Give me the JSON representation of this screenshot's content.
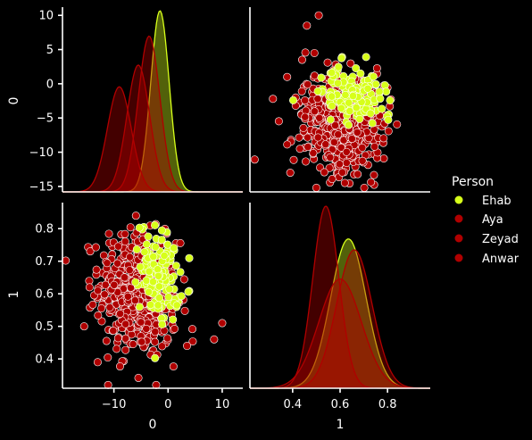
{
  "chart_data": {
    "type": "pairplot",
    "variables": [
      "0",
      "1"
    ],
    "background": "#000000",
    "axis_color": "#ffffff",
    "legend": {
      "title": "Person",
      "placement": "right",
      "entries": [
        {
          "name": "Ehab",
          "color": "#d7ff1a"
        },
        {
          "name": "Aya",
          "color": "#b00000"
        },
        {
          "name": "Zeyad",
          "color": "#b00000"
        },
        {
          "name": "Anwar",
          "color": "#b00000"
        }
      ]
    },
    "x_range_var0": [
      -19.5,
      13.8
    ],
    "y_range_var0": [
      -15.8,
      11.2
    ],
    "x_range_var1": [
      0.22,
      0.98
    ],
    "y_range_var1": [
      0.31,
      0.88
    ],
    "xticks_var0": [
      -10,
      0,
      10
    ],
    "yticks_var0": [
      -15,
      -10,
      -5,
      0,
      5,
      10
    ],
    "xticks_var1": [
      0.4,
      0.6,
      0.8
    ],
    "yticks_var1": [
      0.4,
      0.5,
      0.6,
      0.7,
      0.8
    ],
    "xlabels": [
      "0",
      "1"
    ],
    "ylabels": [
      "0",
      "1"
    ],
    "kde_var0": [
      {
        "name": "Ehab",
        "center": -1.5,
        "sd": 1.7,
        "peak": 1.0,
        "color": "#d7ff1a"
      },
      {
        "name": "Aya",
        "center": -3.5,
        "sd": 2.0,
        "peak": 0.86,
        "color": "#b00000"
      },
      {
        "name": "Zeyad",
        "center": -5.5,
        "sd": 2.1,
        "peak": 0.7,
        "color": "#b00000"
      },
      {
        "name": "Anwar",
        "center": -9.0,
        "sd": 2.2,
        "peak": 0.58,
        "color": "#b00000"
      }
    ],
    "kde_var1": [
      {
        "name": "Ehab",
        "center": 0.635,
        "sd": 0.075,
        "peak": 0.82,
        "color": "#d7ff1a"
      },
      {
        "name": "Aya",
        "center": 0.54,
        "sd": 0.055,
        "peak": 1.0,
        "color": "#b00000"
      },
      {
        "name": "Zeyad",
        "center": 0.66,
        "sd": 0.075,
        "peak": 0.76,
        "color": "#b00000"
      },
      {
        "name": "Anwar",
        "center": 0.6,
        "sd": 0.09,
        "peak": 0.6,
        "color": "#b00000"
      }
    ],
    "scatter_clusters": [
      {
        "name": "Red",
        "color": "#b00000",
        "count": 520,
        "mean_v0": -5.5,
        "sd_v0": 3.6,
        "mean_v1": 0.6,
        "sd_v1": 0.095,
        "corr": -0.15
      },
      {
        "name": "Ehab",
        "color": "#d7ff1a",
        "count": 130,
        "mean_v0": -1.5,
        "sd_v0": 1.8,
        "mean_v1": 0.66,
        "sd_v1": 0.07,
        "corr": -0.2
      }
    ],
    "outliers": [
      {
        "v0": 10.0,
        "v1": 0.51
      },
      {
        "v0": 8.5,
        "v1": 0.46
      },
      {
        "v0": -14.5,
        "v1": 0.62
      },
      {
        "v0": -15.5,
        "v1": 0.5
      },
      {
        "v0": -13.0,
        "v1": 0.39
      },
      {
        "v0": 3.5,
        "v1": 0.44
      }
    ]
  }
}
